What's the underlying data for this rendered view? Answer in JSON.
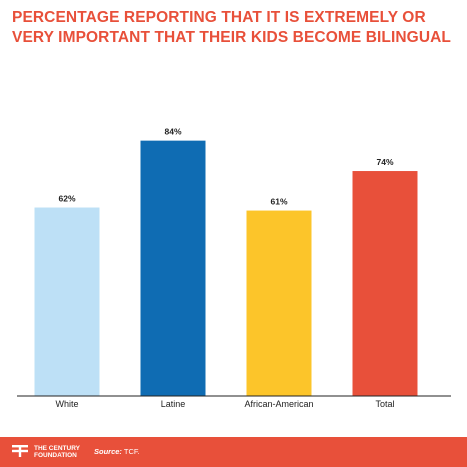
{
  "chart_data": {
    "type": "bar",
    "title": "PERCENTAGE REPORTING THAT IT IS EXTREMELY OR VERY IMPORTANT THAT THEIR KIDS BECOME BILINGUAL",
    "categories": [
      "White",
      "Latine",
      "African-American",
      "Total"
    ],
    "values": [
      62,
      84,
      61,
      74
    ],
    "data_labels": [
      "62%",
      "84%",
      "61%",
      "74%"
    ],
    "colors": [
      "#bde0f6",
      "#0f6cb3",
      "#fcc52a",
      "#e8503a"
    ],
    "ylim": [
      0,
      100
    ],
    "xlabel": "",
    "ylabel": "",
    "grid": false,
    "legend": false
  },
  "footer": {
    "logo_line1": "THE CENTURY",
    "logo_line2": "FOUNDATION",
    "source_label": "Source:",
    "source_value": "TCF."
  },
  "theme": {
    "accent": "#e8503a",
    "background": "#ffffff",
    "axis": "#222222"
  }
}
